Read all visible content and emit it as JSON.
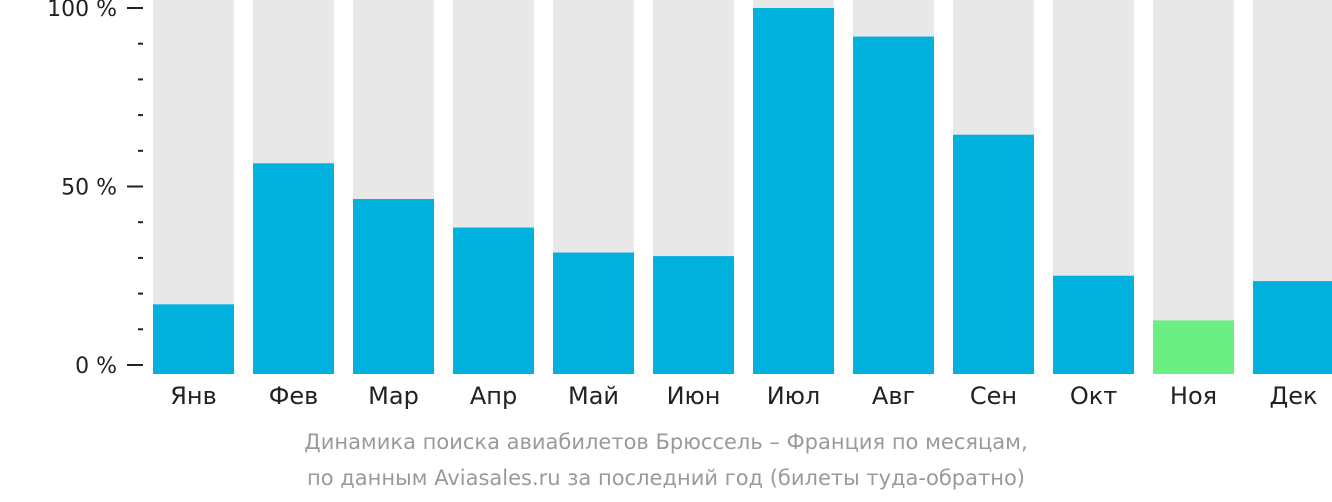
{
  "chart_data": {
    "type": "bar",
    "categories": [
      "Янв",
      "Фев",
      "Мар",
      "Апр",
      "Май",
      "Июн",
      "Июл",
      "Авг",
      "Сен",
      "Окт",
      "Ноя",
      "Дек"
    ],
    "values": [
      17,
      56.5,
      46.5,
      38.5,
      31.5,
      30.5,
      100,
      92,
      64.5,
      25,
      12.5,
      23.5
    ],
    "ylim": [
      0,
      100
    ],
    "yticks": [
      {
        "value": 100,
        "label": "100 %"
      },
      {
        "value": 50,
        "label": "50 %"
      },
      {
        "value": 0,
        "label": "0 %"
      }
    ],
    "minor_tick_step": 10,
    "highlight_index": 10,
    "colors": {
      "bar": "#00b0dd",
      "highlight": "#6bef82",
      "background_bar": "#e8e8e8",
      "axis": "#222222"
    },
    "grid": false,
    "legend": "none"
  },
  "caption": {
    "line1": "Динамика поиска авиабилетов Брюссель – Франция по месяцам,",
    "line2": "по данным Aviasales.ru за последний год (билеты туда-обратно)"
  }
}
